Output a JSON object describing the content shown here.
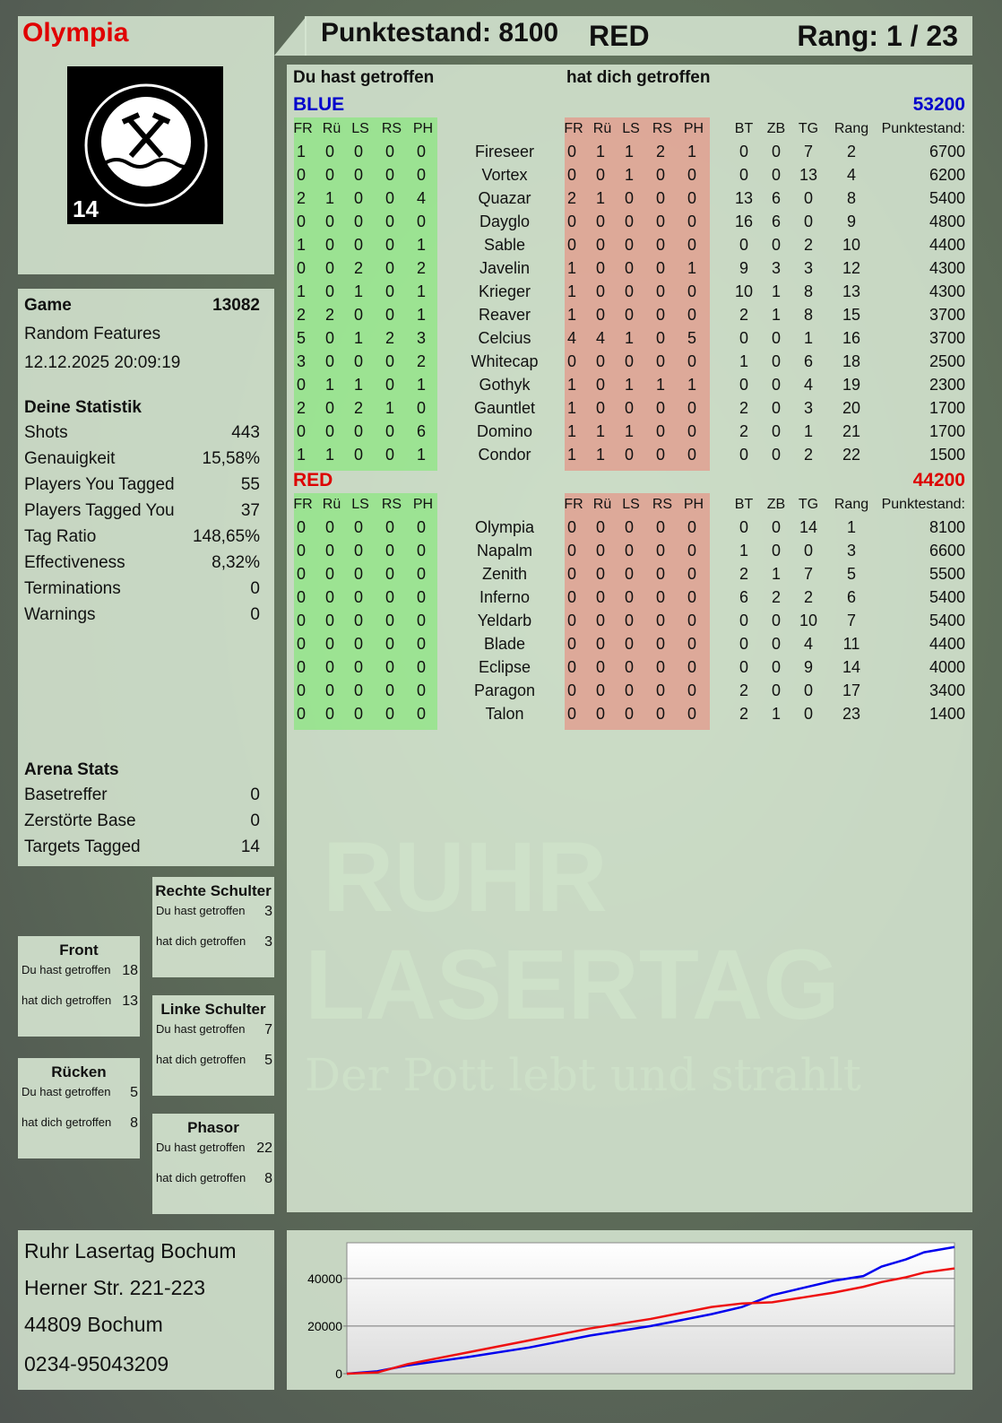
{
  "player": {
    "name": "Olympia",
    "logo": {
      "top": "RUHR",
      "bottom": "LASERTAG",
      "badge": "14"
    }
  },
  "header": {
    "score_label": "Punktestand: 8100",
    "team": "RED",
    "rank_label": "Rang: 1 / 23"
  },
  "game": {
    "label": "Game",
    "id": "13082",
    "mode": "Random Features",
    "datetime": "12.12.2025 20:09:19"
  },
  "stats": {
    "title": "Deine Statistik",
    "items": [
      {
        "label": "Shots",
        "value": "443"
      },
      {
        "label": "Genauigkeit",
        "value": "15,58%"
      },
      {
        "label": "Players You Tagged",
        "value": "55"
      },
      {
        "label": "Players Tagged You",
        "value": "37"
      },
      {
        "label": "Tag Ratio",
        "value": "148,65%"
      },
      {
        "label": "Effectiveness",
        "value": "8,32%"
      },
      {
        "label": "Terminations",
        "value": "0"
      },
      {
        "label": "Warnings",
        "value": "0"
      }
    ]
  },
  "arena": {
    "title": "Arena Stats",
    "items": [
      {
        "label": "Basetreffer",
        "value": "0"
      },
      {
        "label": "Zerstörte Base",
        "value": "0"
      },
      {
        "label": "Targets Tagged",
        "value": "14"
      }
    ]
  },
  "zones": {
    "hit_label": "Du hast getroffen",
    "got_label": "hat dich getroffen",
    "items": [
      {
        "name": "Rechte Schulter",
        "hit": "3",
        "got": "3"
      },
      {
        "name": "Front",
        "hit": "18",
        "got": "13"
      },
      {
        "name": "Linke Schulter",
        "hit": "7",
        "got": "5"
      },
      {
        "name": "Rücken",
        "hit": "5",
        "got": "8"
      },
      {
        "name": "Phasor",
        "hit": "22",
        "got": "8"
      }
    ]
  },
  "address": [
    "Ruhr Lasertag Bochum",
    "Herner Str. 221-223",
    "44809 Bochum",
    "0234-95043209"
  ],
  "main": {
    "hit_title": "Du hast getroffen",
    "got_title": "hat dich getroffen",
    "columns": [
      "FR",
      "Rü",
      "LS",
      "RS",
      "PH"
    ],
    "extra_columns": [
      "BT",
      "ZB",
      "TG",
      "Rang",
      "Punktestand:"
    ],
    "teams": [
      {
        "name": "BLUE",
        "score": "53200",
        "color": "#0000cc",
        "players": [
          {
            "name": "Fireseer",
            "hit": [
              1,
              0,
              0,
              0,
              0
            ],
            "got": [
              0,
              1,
              1,
              2,
              1
            ],
            "bt": 0,
            "zb": 0,
            "tg": 7,
            "rang": 2,
            "score": 6700
          },
          {
            "name": "Vortex",
            "hit": [
              0,
              0,
              0,
              0,
              0
            ],
            "got": [
              0,
              0,
              1,
              0,
              0
            ],
            "bt": 0,
            "zb": 0,
            "tg": 13,
            "rang": 4,
            "score": 6200
          },
          {
            "name": "Quazar",
            "hit": [
              2,
              1,
              0,
              0,
              4
            ],
            "got": [
              2,
              1,
              0,
              0,
              0
            ],
            "bt": 13,
            "zb": 6,
            "tg": 0,
            "rang": 8,
            "score": 5400
          },
          {
            "name": "Dayglo",
            "hit": [
              0,
              0,
              0,
              0,
              0
            ],
            "got": [
              0,
              0,
              0,
              0,
              0
            ],
            "bt": 16,
            "zb": 6,
            "tg": 0,
            "rang": 9,
            "score": 4800
          },
          {
            "name": "Sable",
            "hit": [
              1,
              0,
              0,
              0,
              1
            ],
            "got": [
              0,
              0,
              0,
              0,
              0
            ],
            "bt": 0,
            "zb": 0,
            "tg": 2,
            "rang": 10,
            "score": 4400
          },
          {
            "name": "Javelin",
            "hit": [
              0,
              0,
              2,
              0,
              2
            ],
            "got": [
              1,
              0,
              0,
              0,
              1
            ],
            "bt": 9,
            "zb": 3,
            "tg": 3,
            "rang": 12,
            "score": 4300
          },
          {
            "name": "Krieger",
            "hit": [
              1,
              0,
              1,
              0,
              1
            ],
            "got": [
              1,
              0,
              0,
              0,
              0
            ],
            "bt": 10,
            "zb": 1,
            "tg": 8,
            "rang": 13,
            "score": 4300
          },
          {
            "name": "Reaver",
            "hit": [
              2,
              2,
              0,
              0,
              1
            ],
            "got": [
              1,
              0,
              0,
              0,
              0
            ],
            "bt": 2,
            "zb": 1,
            "tg": 8,
            "rang": 15,
            "score": 3700
          },
          {
            "name": "Celcius",
            "hit": [
              5,
              0,
              1,
              2,
              3
            ],
            "got": [
              4,
              4,
              1,
              0,
              5
            ],
            "bt": 0,
            "zb": 0,
            "tg": 1,
            "rang": 16,
            "score": 3700
          },
          {
            "name": "Whitecap",
            "hit": [
              3,
              0,
              0,
              0,
              2
            ],
            "got": [
              0,
              0,
              0,
              0,
              0
            ],
            "bt": 1,
            "zb": 0,
            "tg": 6,
            "rang": 18,
            "score": 2500
          },
          {
            "name": "Gothyk",
            "hit": [
              0,
              1,
              1,
              0,
              1
            ],
            "got": [
              1,
              0,
              1,
              1,
              1
            ],
            "bt": 0,
            "zb": 0,
            "tg": 4,
            "rang": 19,
            "score": 2300
          },
          {
            "name": "Gauntlet",
            "hit": [
              2,
              0,
              2,
              1,
              0
            ],
            "got": [
              1,
              0,
              0,
              0,
              0
            ],
            "bt": 2,
            "zb": 0,
            "tg": 3,
            "rang": 20,
            "score": 1700
          },
          {
            "name": "Domino",
            "hit": [
              0,
              0,
              0,
              0,
              6
            ],
            "got": [
              1,
              1,
              1,
              0,
              0
            ],
            "bt": 2,
            "zb": 0,
            "tg": 1,
            "rang": 21,
            "score": 1700
          },
          {
            "name": "Condor",
            "hit": [
              1,
              1,
              0,
              0,
              1
            ],
            "got": [
              1,
              1,
              0,
              0,
              0
            ],
            "bt": 0,
            "zb": 0,
            "tg": 2,
            "rang": 22,
            "score": 1500
          }
        ]
      },
      {
        "name": "RED",
        "score": "44200",
        "color": "#dd0000",
        "players": [
          {
            "name": "Olympia",
            "hit": [
              0,
              0,
              0,
              0,
              0
            ],
            "got": [
              0,
              0,
              0,
              0,
              0
            ],
            "bt": 0,
            "zb": 0,
            "tg": 14,
            "rang": 1,
            "score": 8100
          },
          {
            "name": "Napalm",
            "hit": [
              0,
              0,
              0,
              0,
              0
            ],
            "got": [
              0,
              0,
              0,
              0,
              0
            ],
            "bt": 1,
            "zb": 0,
            "tg": 0,
            "rang": 3,
            "score": 6600
          },
          {
            "name": "Zenith",
            "hit": [
              0,
              0,
              0,
              0,
              0
            ],
            "got": [
              0,
              0,
              0,
              0,
              0
            ],
            "bt": 2,
            "zb": 1,
            "tg": 7,
            "rang": 5,
            "score": 5500
          },
          {
            "name": "Inferno",
            "hit": [
              0,
              0,
              0,
              0,
              0
            ],
            "got": [
              0,
              0,
              0,
              0,
              0
            ],
            "bt": 6,
            "zb": 2,
            "tg": 2,
            "rang": 6,
            "score": 5400
          },
          {
            "name": "Yeldarb",
            "hit": [
              0,
              0,
              0,
              0,
              0
            ],
            "got": [
              0,
              0,
              0,
              0,
              0
            ],
            "bt": 0,
            "zb": 0,
            "tg": 10,
            "rang": 7,
            "score": 5400
          },
          {
            "name": "Blade",
            "hit": [
              0,
              0,
              0,
              0,
              0
            ],
            "got": [
              0,
              0,
              0,
              0,
              0
            ],
            "bt": 0,
            "zb": 0,
            "tg": 4,
            "rang": 11,
            "score": 4400
          },
          {
            "name": "Eclipse",
            "hit": [
              0,
              0,
              0,
              0,
              0
            ],
            "got": [
              0,
              0,
              0,
              0,
              0
            ],
            "bt": 0,
            "zb": 0,
            "tg": 9,
            "rang": 14,
            "score": 4000
          },
          {
            "name": "Paragon",
            "hit": [
              0,
              0,
              0,
              0,
              0
            ],
            "got": [
              0,
              0,
              0,
              0,
              0
            ],
            "bt": 2,
            "zb": 0,
            "tg": 0,
            "rang": 17,
            "score": 3400
          },
          {
            "name": "Talon",
            "hit": [
              0,
              0,
              0,
              0,
              0
            ],
            "got": [
              0,
              0,
              0,
              0,
              0
            ],
            "bt": 2,
            "zb": 1,
            "tg": 0,
            "rang": 23,
            "score": 1400
          }
        ]
      }
    ]
  },
  "watermark": {
    "line1": "RUHR",
    "line2": "LASERTAG",
    "slogan": "Der Pott lebt und strahlt"
  },
  "chart_data": {
    "type": "line",
    "ylim": [
      0,
      55000
    ],
    "yticks": [
      "0",
      "20000",
      "40000"
    ],
    "grid": true,
    "x": [
      0,
      5,
      10,
      20,
      30,
      40,
      50,
      60,
      65,
      70,
      75,
      80,
      85,
      88,
      92,
      95,
      100
    ],
    "series": [
      {
        "color": "#0000ee",
        "values": [
          0,
          1000,
          3500,
          7000,
          11000,
          16000,
          20000,
          25000,
          28000,
          33000,
          36000,
          39000,
          41000,
          45000,
          48000,
          51000,
          53200
        ]
      },
      {
        "color": "#ee1111",
        "values": [
          0,
          500,
          4000,
          9000,
          14000,
          19000,
          23000,
          28000,
          29500,
          30000,
          32000,
          34000,
          36500,
          38500,
          40500,
          42500,
          44200
        ]
      }
    ]
  }
}
